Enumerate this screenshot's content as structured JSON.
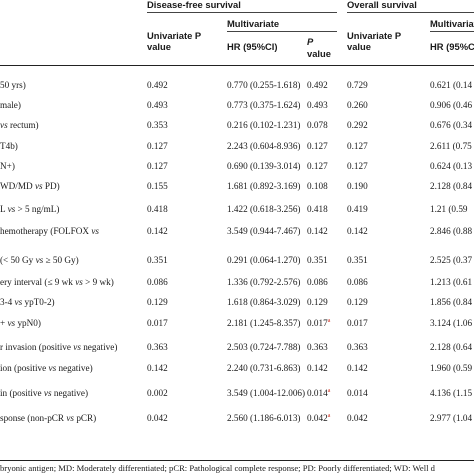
{
  "header": {
    "dfs": "Disease-free survival",
    "os": "Overall survival",
    "multivariate": "Multivariate",
    "univariate_p_line1": "Univariate P",
    "univariate_p_line2": "value",
    "hr": "HR (95%CI)",
    "p_line1": "P",
    "p_line2": "value",
    "os_univariate_line1": "Univariate P",
    "os_univariate_line2": "value",
    "os_multivariate": "Multivariate",
    "os_hr": "HR (95%C"
  },
  "rows": [
    {
      "label": "50 yrs)",
      "dfs_uni": "0.492",
      "dfs_hr": "0.770 (0.255-1.618)",
      "dfs_p": "0.492",
      "os_uni": "0.729",
      "os_hr": "0.621 (0.14"
    },
    {
      "label": "male)",
      "dfs_uni": "0.493",
      "dfs_hr": "0.773 (0.375-1.624)",
      "dfs_p": "0.493",
      "os_uni": "0.260",
      "os_hr": "0.906 (0.46"
    },
    {
      "label": "vs rectum)",
      "dfs_uni": "0.353",
      "dfs_hr": "0.216 (0.102-1.231)",
      "dfs_p": "0.078",
      "os_uni": "0.292",
      "os_hr": "0.676 (0.34"
    },
    {
      "label": "T4b)",
      "dfs_uni": "0.127",
      "dfs_hr": "2.243 (0.604-8.936)",
      "dfs_p": "0.127",
      "os_uni": "0.127",
      "os_hr": "2.611 (0.75"
    },
    {
      "label": "N+)",
      "dfs_uni": "0.127",
      "dfs_hr": "0.690 (0.139-3.014)",
      "dfs_p": "0.127",
      "os_uni": "0.127",
      "os_hr": "0.624 (0.13"
    },
    {
      "label": "WD/MD vs PD)",
      "dfs_uni": "0.155",
      "dfs_hr": "1.681 (0.892-3.169)",
      "dfs_p": "0.108",
      "os_uni": "0.190",
      "os_hr": "2.128 (0.84"
    },
    {
      "label": "L vs > 5 ng/mL)",
      "dfs_uni": "0.418",
      "dfs_hr": "1.422 (0.618-3.256)",
      "dfs_p": "0.418",
      "os_uni": "0.419",
      "os_hr": "1.21 (0.59"
    },
    {
      "label": "hemotherapy (FOLFOX vs",
      "dfs_uni": "0.142",
      "dfs_hr": "3.549 (0.944-7.467)",
      "dfs_p": "0.142",
      "os_uni": "0.142",
      "os_hr": "2.846 (0.88"
    },
    {
      "label": "(< 50 Gy vs ≥ 50 Gy)",
      "dfs_uni": "0.351",
      "dfs_hr": "0.291 (0.064-1.270)",
      "dfs_p": "0.351",
      "os_uni": "0.351",
      "os_hr": "2.525 (0.37"
    },
    {
      "label": "ery interval (≤ 9 wk vs > 9 wk)",
      "dfs_uni": "0.086",
      "dfs_hr": "1.336 (0.792-2.576)",
      "dfs_p": "0.086",
      "os_uni": "0.086",
      "os_hr": "1.213 (0.61"
    },
    {
      "label": "3-4 vs ypT0-2)",
      "dfs_uni": "0.129",
      "dfs_hr": "1.618 (0.864-3.029)",
      "dfs_p": "0.129",
      "os_uni": "0.129",
      "os_hr": "1.856 (0.84"
    },
    {
      "label": "+ vs ypN0)",
      "dfs_uni": "0.017",
      "dfs_hr": "2.181 (1.245-8.357)",
      "dfs_p": "0.017",
      "dfs_p_mark": "a",
      "os_uni": "0.017",
      "os_hr": "3.124 (1.06"
    },
    {
      "label": "r invasion (positive vs negative)",
      "dfs_uni": "0.363",
      "dfs_hr": "2.503 (0.724-7.788)",
      "dfs_p": "0.363",
      "os_uni": "0.363",
      "os_hr": "2.128 (0.64"
    },
    {
      "label": "ion (positive vs negative)",
      "dfs_uni": "0.142",
      "dfs_hr": "2.240 (0.731-6.863)",
      "dfs_p": "0.142",
      "os_uni": "0.142",
      "os_hr": "1.960 (0.59"
    },
    {
      "label": "in (positive vs negative)",
      "dfs_uni": "0.002",
      "dfs_hr": "3.549 (1.004-12.006)",
      "dfs_p": "0.014",
      "dfs_p_mark": "a",
      "os_uni": "0.014",
      "os_hr": "4.136 (1.15"
    },
    {
      "label": "sponse (non-pCR vs pCR)",
      "dfs_uni": "0.042",
      "dfs_hr": "2.560 (1.186-6.013)",
      "dfs_p": "0.042",
      "dfs_p_mark": "a",
      "os_uni": "0.042",
      "os_hr": "2.977 (1.04"
    }
  ],
  "footnote": "bryonic antigen; MD: Moderately differentiated; pCR: Pathological complete response; PD: Poorly differentiated; WD: Well d"
}
